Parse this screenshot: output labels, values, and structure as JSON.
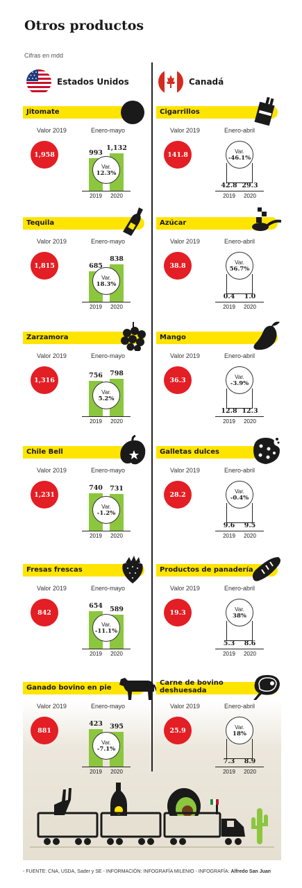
{
  "title": "Otros productos",
  "unit": "Cifras en mdd",
  "countries": {
    "left": "Estados Unidos",
    "right": "Canadá"
  },
  "footer": {
    "source": "- FUENTE: CNA, USDA, Sader y SE - INFORMACIÓN: INFOGRAFÍA MILENIO - INFOGRAFÍA: ",
    "author": "Alfredo San Juan"
  },
  "chart_data": [
    {
      "type": "bar",
      "title": "Jitomate",
      "country": "Estados Unidos",
      "valor_label": "Valor 2019",
      "valor_2019": "1,958",
      "period": "Enero-mayo",
      "categories": [
        "2019",
        "2020"
      ],
      "values": [
        993,
        1132
      ],
      "value_labels": [
        "993",
        "1,132"
      ],
      "var_label": "Var.",
      "var": "12.3%",
      "ylim": [
        0,
        1300
      ],
      "icon": "tomato-icon"
    },
    {
      "type": "bar",
      "title": "Tequila",
      "country": "Estados Unidos",
      "valor_label": "Valor 2019",
      "valor_2019": "1,815",
      "period": "Enero-mayo",
      "categories": [
        "2019",
        "2020"
      ],
      "values": [
        685,
        838
      ],
      "value_labels": [
        "685",
        "838"
      ],
      "var_label": "Var.",
      "var": "18.3%",
      "ylim": [
        0,
        960
      ],
      "icon": "bottle-icon"
    },
    {
      "type": "bar",
      "title": "Zarzamora",
      "country": "Estados Unidos",
      "valor_label": "Valor 2019",
      "valor_2019": "1,316",
      "period": "Enero-mayo",
      "categories": [
        "2019",
        "2020"
      ],
      "values": [
        756,
        798
      ],
      "value_labels": [
        "756",
        "798"
      ],
      "var_label": "Var.",
      "var": "5.2%",
      "ylim": [
        0,
        915
      ],
      "icon": "blackberry-icon"
    },
    {
      "type": "bar",
      "title": "Chile Bell",
      "country": "Estados Unidos",
      "valor_label": "Valor 2019",
      "valor_2019": "1,231",
      "period": "Enero-mayo",
      "categories": [
        "2019",
        "2020"
      ],
      "values": [
        740,
        731
      ],
      "value_labels": [
        "740",
        "731"
      ],
      "var_label": "Var.",
      "var": "-1.2%",
      "ylim": [
        0,
        850
      ],
      "icon": "pepper-icon"
    },
    {
      "type": "bar",
      "title": "Fresas frescas",
      "country": "Estados Unidos",
      "valor_label": "Valor 2019",
      "valor_2019": "842",
      "period": "Enero-mayo",
      "categories": [
        "2019",
        "2020"
      ],
      "values": [
        654,
        589
      ],
      "value_labels": [
        "654",
        "589"
      ],
      "var_label": "Var.",
      "var": "-11.1%",
      "ylim": [
        0,
        750
      ],
      "icon": "strawberry-icon"
    },
    {
      "type": "bar",
      "title": "Ganado bovino en pie",
      "country": "Estados Unidos",
      "valor_label": "Valor 2019",
      "valor_2019": "881",
      "period": "Enero-mayo",
      "categories": [
        "2019",
        "2020"
      ],
      "values": [
        423,
        395
      ],
      "value_labels": [
        "423",
        "395"
      ],
      "var_label": "Var.",
      "var": "-7.1%",
      "ylim": [
        0,
        485
      ],
      "icon": "cow-icon"
    },
    {
      "type": "bar",
      "title": "Cigarrillos",
      "country": "Canadá",
      "valor_label": "Valor 2019",
      "valor_2019": "141.8",
      "period": "Enero-abril",
      "categories": [
        "2019",
        "2020"
      ],
      "values": [
        42.8,
        29.3
      ],
      "value_labels": [
        "42.8",
        "29.3"
      ],
      "var_label": "Var.",
      "var": "-46.1%",
      "ylim": [
        0,
        1300
      ],
      "icon": "cigarette-pack-icon"
    },
    {
      "type": "bar",
      "title": "Azúcar",
      "country": "Canadá",
      "valor_label": "Valor 2019",
      "valor_2019": "38.8",
      "period": "Enero-abril",
      "categories": [
        "2019",
        "2020"
      ],
      "values": [
        0.4,
        1.0
      ],
      "value_labels": [
        "0.4",
        "1.0"
      ],
      "var_label": "Var.",
      "var": "56.7%",
      "ylim": [
        0,
        1300
      ],
      "icon": "sugar-spoon-icon"
    },
    {
      "type": "bar",
      "title": "Mango",
      "country": "Canadá",
      "valor_label": "Valor 2019",
      "valor_2019": "36.3",
      "period": "Enero-abril",
      "categories": [
        "2019",
        "2020"
      ],
      "values": [
        12.8,
        12.3
      ],
      "value_labels": [
        "12.8",
        "12.3"
      ],
      "var_label": "Var.",
      "var": "-3.9%",
      "ylim": [
        0,
        1300
      ],
      "icon": "mango-icon"
    },
    {
      "type": "bar",
      "title": "Galletas dulces",
      "country": "Canadá",
      "valor_label": "Valor 2019",
      "valor_2019": "28.2",
      "period": "Enero-abril",
      "categories": [
        "2019",
        "2020"
      ],
      "values": [
        9.6,
        9.5
      ],
      "value_labels": [
        "9.6",
        "9.5"
      ],
      "var_label": "Var.",
      "var": "-0.4%",
      "ylim": [
        0,
        1300
      ],
      "icon": "cookie-icon"
    },
    {
      "type": "bar",
      "title": "Productos de panadería",
      "country": "Canadá",
      "valor_label": "Valor 2019",
      "valor_2019": "19.3",
      "period": "Enero-abril",
      "categories": [
        "2019",
        "2020"
      ],
      "values": [
        5.3,
        8.6
      ],
      "value_labels": [
        "5.3",
        "8.6"
      ],
      "var_label": "Var.",
      "var": "38%",
      "ylim": [
        0,
        1300
      ],
      "icon": "bread-icon"
    },
    {
      "type": "bar",
      "title": "Carne de bovino deshuesada",
      "country": "Canadá",
      "valor_label": "Valor 2019",
      "valor_2019": "25.9",
      "period": "Enero-abril",
      "categories": [
        "2019",
        "2020"
      ],
      "values": [
        7.3,
        8.9
      ],
      "value_labels": [
        "7.3",
        "8.9"
      ],
      "var_label": "Var.",
      "var": "18%",
      "ylim": [
        0,
        1300
      ],
      "icon": "steak-icon"
    }
  ],
  "colors": {
    "band": "#ffe400",
    "red": "#e31e24",
    "bar": "#8cc63f"
  }
}
